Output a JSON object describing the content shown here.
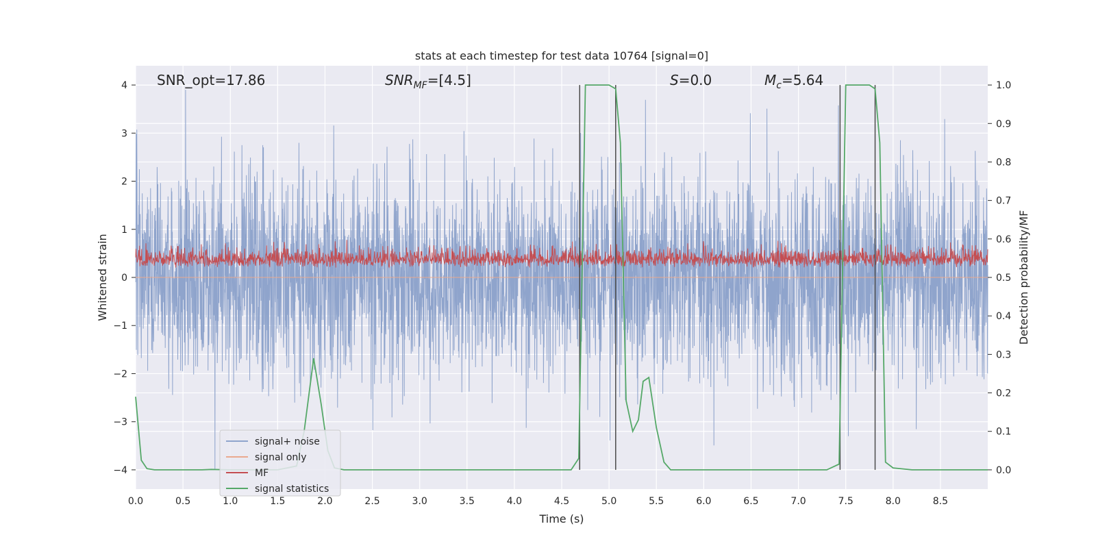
{
  "chart_data": {
    "type": "line",
    "title": "stats at each timestep for test data 10764 [signal=0]",
    "xlabel": "Time (s)",
    "ylabel_left": "Whitened strain",
    "ylabel_right": "Detection probability/MF",
    "xlim": [
      0.0,
      9.0
    ],
    "ylim_left": [
      -4.4,
      4.4
    ],
    "ylim_right": [
      -0.05,
      1.05
    ],
    "xticks": [
      0.0,
      0.5,
      1.0,
      1.5,
      2.0,
      2.5,
      3.0,
      3.5,
      4.0,
      4.5,
      5.0,
      5.5,
      6.0,
      6.5,
      7.0,
      7.5,
      8.0,
      8.5
    ],
    "xtick_labels": [
      "0.0",
      "0.5",
      "1.0",
      "1.5",
      "2.0",
      "2.5",
      "3.0",
      "3.5",
      "4.0",
      "4.5",
      "5.0",
      "5.5",
      "6.0",
      "6.5",
      "7.0",
      "7.5",
      "8.0",
      "8.5"
    ],
    "yticks_left": [
      -4,
      -3,
      -2,
      -1,
      0,
      1,
      2,
      3,
      4
    ],
    "ytick_labels_left": [
      "−4",
      "−3",
      "−2",
      "−1",
      "0",
      "1",
      "2",
      "3",
      "4"
    ],
    "yticks_right": [
      0.0,
      0.1,
      0.2,
      0.3,
      0.4,
      0.5,
      0.6,
      0.7,
      0.8,
      0.9,
      1.0
    ],
    "ytick_labels_right": [
      "0.0",
      "0.1",
      "0.2",
      "0.3",
      "0.4",
      "0.5",
      "0.6",
      "0.7",
      "0.8",
      "0.9",
      "1.0"
    ],
    "annotations": {
      "snr_opt": "SNR_opt=17.86",
      "snr_mf": "SNR_MF=[4.5]",
      "s_value": "S=0.0",
      "mc_value": "M_c=5.64"
    },
    "vertical_lines_s": [
      4.69,
      5.07,
      7.44,
      7.81
    ],
    "series": [
      {
        "name": "signal+ noise",
        "color": "#8fa4cc",
        "axis": "left",
        "style": "dense noise",
        "approx_range": [
          -4.0,
          3.9
        ]
      },
      {
        "name": "signal only",
        "color": "#eaa98e",
        "axis": "left",
        "values": "zero (signal=0)"
      },
      {
        "name": "MF",
        "color": "#c44e52",
        "axis": "right",
        "style": "dense noise",
        "approx_range": [
          0.5,
          0.63
        ]
      },
      {
        "name": "signal statistics",
        "color": "#55a868",
        "axis": "right",
        "x": [
          0.0,
          0.06,
          0.12,
          0.2,
          0.4,
          0.7,
          0.8,
          1.0,
          1.5,
          1.7,
          1.78,
          1.88,
          1.96,
          2.03,
          2.1,
          2.2,
          3.0,
          4.0,
          4.5,
          4.6,
          4.68,
          4.75,
          5.0,
          5.07,
          5.12,
          5.18,
          5.25,
          5.31,
          5.36,
          5.42,
          5.5,
          5.58,
          5.65,
          5.8,
          6.5,
          7.0,
          7.3,
          7.43,
          7.5,
          7.75,
          7.81,
          7.86,
          7.92,
          8.0,
          8.2,
          9.0
        ],
        "values": [
          0.19,
          0.025,
          0.003,
          0.0,
          0.0,
          0.0,
          0.001,
          0.0,
          0.0,
          0.01,
          0.1,
          0.29,
          0.17,
          0.05,
          0.005,
          0.0,
          0.0,
          0.0,
          0.0,
          0.0,
          0.03,
          1.0,
          1.0,
          0.99,
          0.85,
          0.18,
          0.1,
          0.13,
          0.23,
          0.24,
          0.11,
          0.02,
          0.0,
          0.0,
          0.0,
          0.0,
          0.0,
          0.015,
          1.0,
          1.0,
          0.99,
          0.85,
          0.02,
          0.005,
          0.0,
          0.0
        ]
      }
    ],
    "legend_position": "lower-left"
  },
  "colors": {
    "axes_bg": "#eaeaf2",
    "grid": "#ffffff",
    "vline": "#4a4a4a"
  }
}
